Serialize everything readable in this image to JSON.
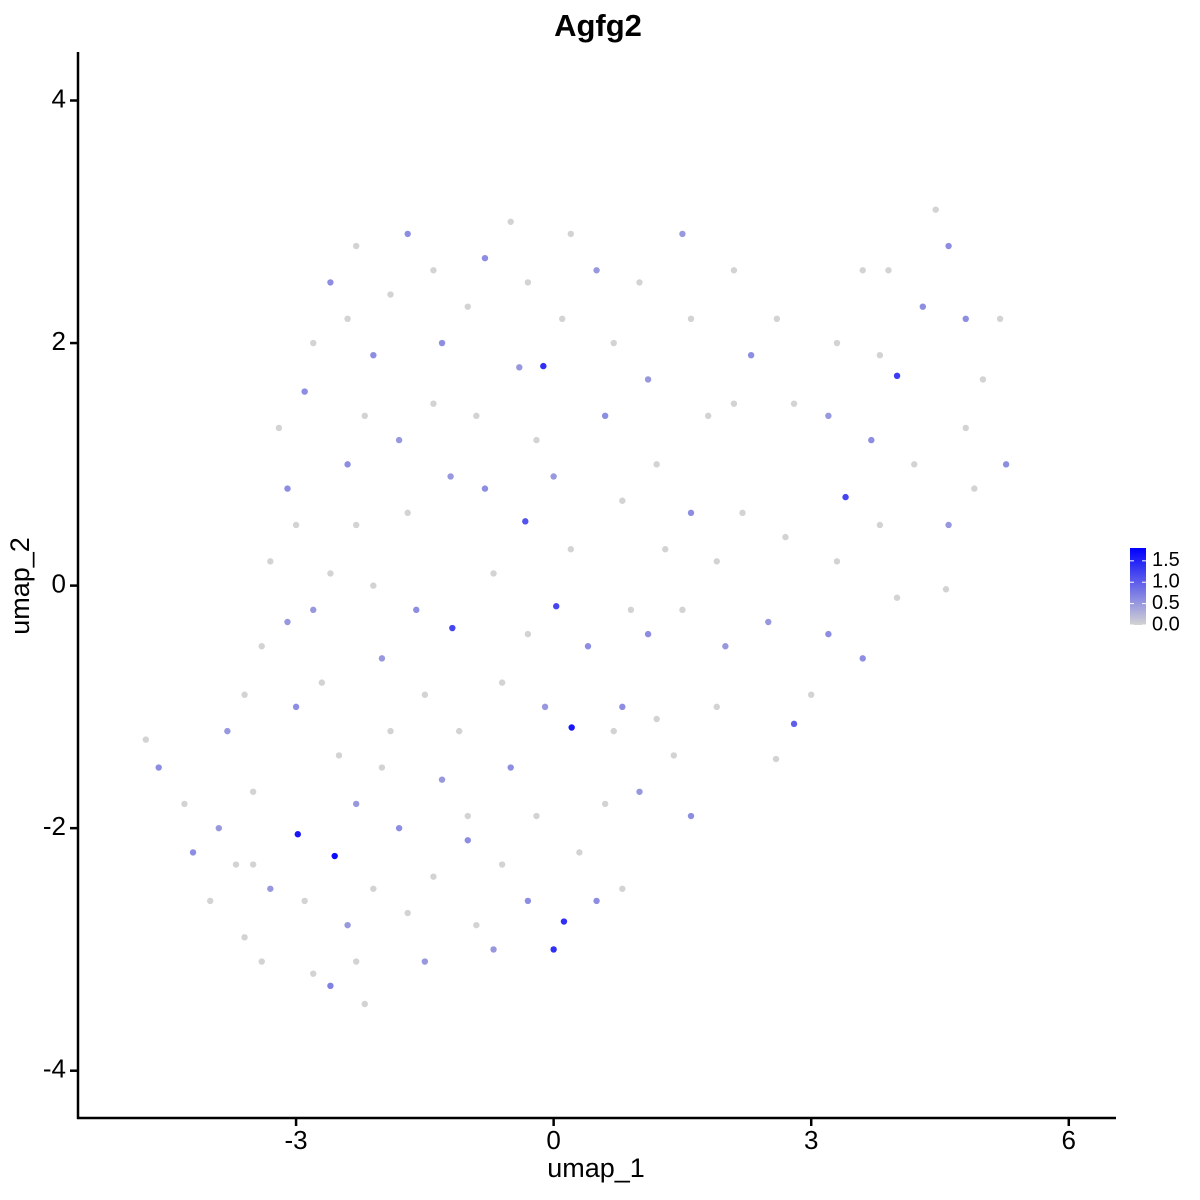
{
  "chart_data": {
    "type": "scatter",
    "title": "Agfg2",
    "x_label": "umap_1",
    "y_label": "umap_2",
    "xlim": [
      -5.54,
      6.55
    ],
    "xticks": [
      -3,
      0,
      3,
      6
    ],
    "ylim": [
      -4.39,
      4.4
    ],
    "yticks": [
      -4,
      -2,
      0,
      2,
      4
    ],
    "x": [
      -4.75,
      -4.6,
      -4.3,
      -4.2,
      -4.0,
      -3.9,
      -3.7,
      -3.6,
      -3.4,
      -3.3,
      -3.5,
      -3.8,
      -3.6,
      -3.4,
      -3.3,
      -3.1,
      -3.0,
      -2.98,
      -2.9,
      -2.8,
      -2.6,
      -2.55,
      -2.4,
      -2.2,
      -2.3,
      -2.1,
      -2.3,
      -2.5,
      -2.7,
      -2.8,
      -3.0,
      -3.1,
      -3.2,
      -2.9,
      -2.8,
      -2.6,
      -2.4,
      -2.3,
      -2.1,
      -2.2,
      -2.4,
      -2.3,
      -2.1,
      -2.0,
      -1.9,
      -1.8,
      -1.7,
      -1.5,
      -1.4,
      -1.3,
      -1.5,
      -1.6,
      -1.7,
      -1.8,
      -1.9,
      -1.7,
      -1.4,
      -1.3,
      -1.4,
      -1.2,
      -1.18,
      -1.1,
      -1.0,
      -0.9,
      -0.7,
      -0.6,
      -0.5,
      -0.6,
      -0.7,
      -0.8,
      -0.9,
      -1.0,
      -0.8,
      -0.5,
      -0.3,
      -0.4,
      -0.12,
      -0.2,
      -0.33,
      -0.3,
      0.03,
      -0.1,
      -0.2,
      -0.3,
      0.0,
      0.12,
      0.3,
      0.21,
      0.4,
      0.2,
      0.0,
      0.1,
      0.2,
      0.5,
      0.7,
      0.6,
      0.8,
      0.9,
      0.8,
      0.6,
      0.5,
      0.8,
      1.0,
      1.2,
      1.1,
      1.3,
      1.2,
      1.1,
      1.0,
      1.5,
      1.6,
      1.8,
      1.6,
      1.5,
      1.4,
      1.6,
      1.9,
      2.0,
      2.2,
      2.1,
      2.3,
      2.6,
      2.8,
      2.7,
      2.5,
      2.59,
      2.8,
      3.0,
      3.2,
      3.3,
      3.4,
      3.2,
      3.3,
      3.6,
      3.8,
      4.0,
      3.7,
      3.8,
      4.0,
      3.6,
      4.2,
      4.3,
      4.45,
      4.6,
      4.8,
      5.0,
      5.2,
      5.27,
      4.9,
      4.57,
      4.6,
      4.8,
      3.9,
      2.1,
      -1.0,
      -2.0,
      -2.6,
      -3.5,
      0.7,
      1.9
    ],
    "y": [
      -1.27,
      -1.5,
      -1.8,
      -2.2,
      -2.6,
      -2.0,
      -2.3,
      -2.9,
      -3.1,
      -2.5,
      -1.7,
      -1.2,
      -0.9,
      -0.5,
      0.2,
      -0.3,
      -1.0,
      -2.05,
      -2.6,
      -3.2,
      -3.3,
      -2.23,
      -2.8,
      -3.45,
      -3.1,
      -2.5,
      -1.8,
      -1.4,
      -0.8,
      -0.2,
      0.5,
      0.8,
      1.3,
      1.6,
      2.0,
      2.5,
      2.2,
      2.8,
      1.9,
      1.4,
      1.0,
      0.5,
      0.0,
      -0.6,
      -1.2,
      -2.0,
      -2.7,
      -3.1,
      -2.4,
      -1.6,
      -0.9,
      -0.2,
      0.6,
      1.2,
      2.4,
      2.9,
      2.6,
      2.0,
      1.5,
      0.9,
      -0.35,
      -1.2,
      -2.1,
      -2.8,
      -3.0,
      -2.3,
      -1.5,
      -0.8,
      0.1,
      0.8,
      1.4,
      2.3,
      2.7,
      3.0,
      2.5,
      1.8,
      1.81,
      1.2,
      0.53,
      -0.4,
      -0.17,
      -1.0,
      -1.9,
      -2.6,
      -3.0,
      -2.77,
      -2.2,
      -1.17,
      -0.5,
      0.3,
      0.9,
      2.2,
      2.9,
      2.6,
      2.0,
      1.4,
      0.7,
      -0.2,
      -1.0,
      -1.8,
      -2.6,
      -2.5,
      -1.7,
      -1.1,
      -0.4,
      0.3,
      1.0,
      1.7,
      2.5,
      2.9,
      2.2,
      1.4,
      0.6,
      -0.2,
      -1.4,
      -1.9,
      -1.0,
      -0.5,
      0.6,
      1.5,
      1.9,
      2.2,
      1.5,
      0.4,
      -0.3,
      -1.43,
      -1.14,
      -0.9,
      -0.4,
      0.2,
      0.73,
      1.4,
      2.0,
      2.6,
      1.9,
      1.73,
      1.2,
      0.5,
      -0.1,
      -0.6,
      1.0,
      2.3,
      3.1,
      2.8,
      2.2,
      1.7,
      2.2,
      1.0,
      0.8,
      -0.03,
      0.5,
      1.3,
      2.6,
      2.6,
      -1.9,
      -1.5,
      0.1,
      -2.3,
      -1.2,
      0.2
    ],
    "values": [
      0,
      0.6,
      0,
      0.6,
      0,
      0.5,
      0,
      0,
      0,
      0.5,
      0,
      0.5,
      0,
      0,
      0,
      0.5,
      0.6,
      1.6,
      0,
      0,
      0.7,
      1.7,
      0.5,
      0,
      0,
      0,
      0.5,
      0,
      0,
      0.5,
      0,
      0.6,
      0,
      0.6,
      0,
      0.6,
      0,
      0,
      0.6,
      0,
      0.6,
      0,
      0,
      0.5,
      0,
      0.6,
      0,
      0.5,
      0,
      0.5,
      0,
      0.6,
      0,
      0.5,
      0,
      0.6,
      0,
      0.6,
      0,
      0.5,
      1.2,
      0,
      0.6,
      0,
      0.5,
      0,
      0.6,
      0,
      0,
      0.6,
      0,
      0,
      0.6,
      0,
      0,
      0.5,
      1.4,
      0,
      1.1,
      0,
      1.2,
      0.5,
      0,
      0.6,
      1.4,
      1.4,
      0,
      1.6,
      0.6,
      0,
      0.5,
      0,
      0,
      0.5,
      0,
      0.6,
      0,
      0,
      0.6,
      0,
      0.6,
      0,
      0.5,
      0,
      0.6,
      0,
      0,
      0.5,
      0,
      0.5,
      0,
      0,
      0.6,
      0,
      0,
      0.6,
      0,
      0.5,
      0,
      0,
      0.6,
      0,
      0,
      0,
      0.5,
      0,
      1.0,
      0,
      0.6,
      0,
      1.2,
      0.5,
      0,
      0,
      0,
      1.3,
      0.6,
      0,
      0,
      0.6,
      0,
      0.6,
      0,
      0.6,
      0.6,
      0,
      0,
      0.6,
      0,
      0,
      0.5,
      0,
      0,
      0,
      0,
      0,
      0,
      0,
      0,
      0
    ],
    "colorbar": {
      "low": "#d3d3d3",
      "high": "#0000ff",
      "lim": [
        0,
        1.8
      ],
      "ticks": [
        {
          "value": 0,
          "label": "0.0"
        },
        0.5,
        {
          "value": 1,
          "label": "1.0"
        },
        1.5
      ]
    }
  }
}
